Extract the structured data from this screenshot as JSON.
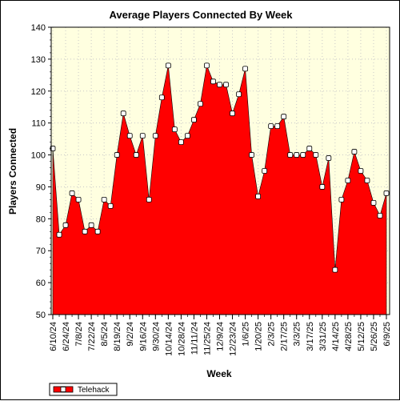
{
  "chart_data": {
    "type": "area",
    "title": "Average Players Connected By Week",
    "xlabel": "Week",
    "ylabel": "Players Connected",
    "ylim": [
      50,
      140
    ],
    "yticks": [
      50,
      60,
      70,
      80,
      90,
      100,
      110,
      120,
      130,
      140
    ],
    "grid": true,
    "legend_position": "bottom-left",
    "x_tick_labels": [
      "6/10/24",
      "6/24/24",
      "7/8/24",
      "7/22/24",
      "8/5/24",
      "8/19/24",
      "9/2/24",
      "9/16/24",
      "9/30/24",
      "10/14/24",
      "10/28/24",
      "11/11/24",
      "11/25/24",
      "12/9/24",
      "12/23/24",
      "1/6/25",
      "1/20/25",
      "2/3/25",
      "2/17/25",
      "3/3/25",
      "3/17/25",
      "3/31/25",
      "4/14/25",
      "4/28/25",
      "5/12/25",
      "5/26/25",
      "6/9/25"
    ],
    "x": [
      "6/10/24",
      "6/17/24",
      "6/24/24",
      "7/1/24",
      "7/8/24",
      "7/15/24",
      "7/22/24",
      "7/29/24",
      "8/5/24",
      "8/12/24",
      "8/19/24",
      "8/26/24",
      "9/2/24",
      "9/9/24",
      "9/16/24",
      "9/23/24",
      "9/30/24",
      "10/7/24",
      "10/14/24",
      "10/21/24",
      "10/28/24",
      "11/4/24",
      "11/11/24",
      "11/18/24",
      "11/25/24",
      "12/2/24",
      "12/9/24",
      "12/16/24",
      "12/23/24",
      "12/30/24",
      "1/6/25",
      "1/13/25",
      "1/20/25",
      "1/27/25",
      "2/3/25",
      "2/10/25",
      "2/17/25",
      "2/24/25",
      "3/3/25",
      "3/10/25",
      "3/17/25",
      "3/24/25",
      "3/31/25",
      "4/7/25",
      "4/14/25",
      "4/21/25",
      "4/28/25",
      "5/5/25",
      "5/12/25",
      "5/19/25",
      "5/26/25",
      "6/2/25",
      "6/9/25"
    ],
    "series": [
      {
        "name": "Telehack",
        "color": "#ff0000",
        "values": [
          102,
          75,
          78,
          88,
          86,
          76,
          78,
          76,
          86,
          84,
          100,
          113,
          106,
          100,
          106,
          86,
          106,
          118,
          128,
          108,
          104,
          106,
          111,
          116,
          128,
          123,
          122,
          122,
          113,
          119,
          127,
          100,
          87,
          95,
          109,
          109,
          112,
          100,
          100,
          100,
          102,
          100,
          90,
          99,
          64,
          86,
          92,
          101,
          95,
          92,
          85,
          81,
          88
        ]
      }
    ]
  },
  "legend": {
    "label": "Telehack"
  },
  "colors": {
    "plot_background": "#ffffe0",
    "area_fill": "#ff0000",
    "marker_fill": "#ffffff"
  }
}
